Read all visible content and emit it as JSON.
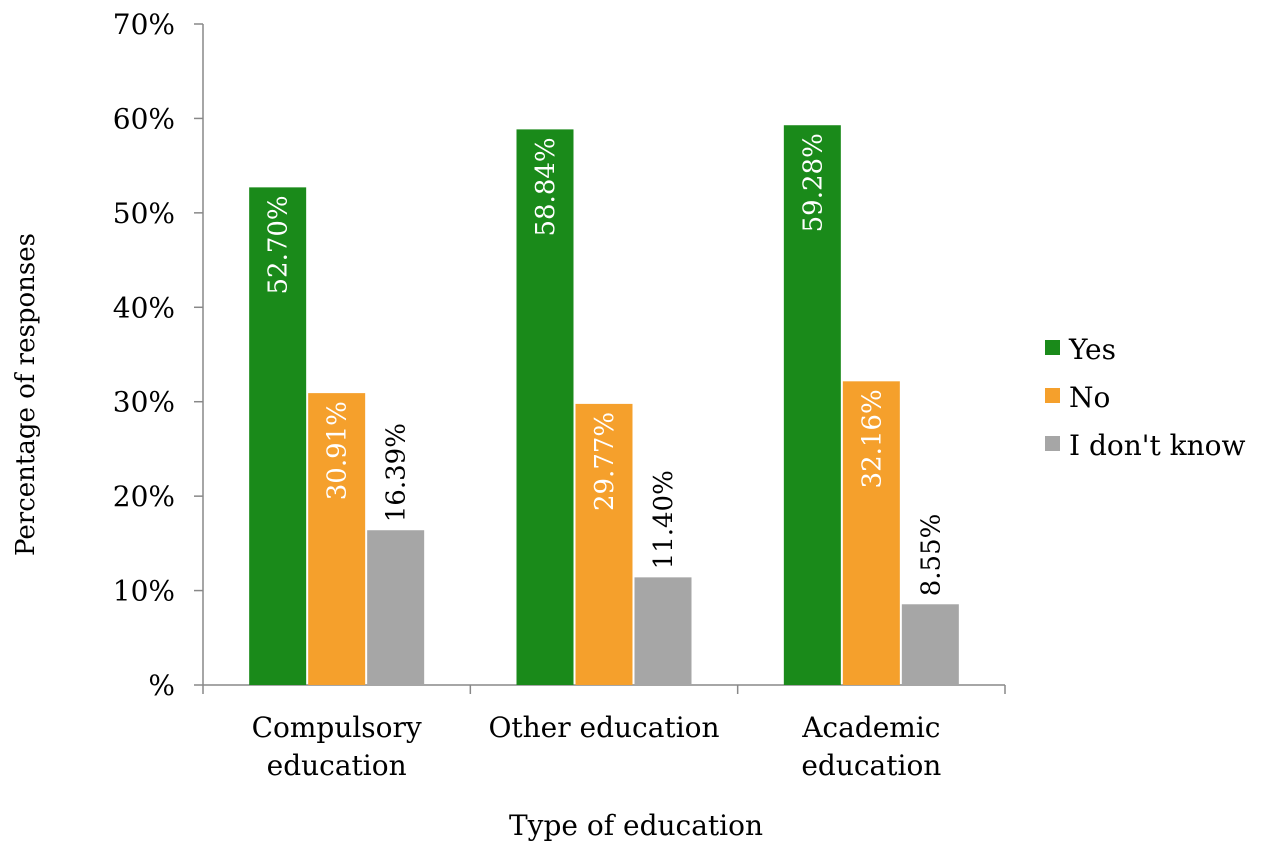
{
  "chart_data": {
    "type": "bar",
    "title": "",
    "xlabel": "Type of education",
    "ylabel": "Percentage of responses",
    "categories": [
      [
        "Compulsory",
        "education"
      ],
      [
        "Other education"
      ],
      [
        "Academic",
        "education"
      ]
    ],
    "series": [
      {
        "name": "Yes",
        "color": "#1a8a1a",
        "label_color": "#ffffff",
        "values": [
          52.7,
          58.84,
          59.28
        ]
      },
      {
        "name": "No",
        "color": "#f5a02c",
        "label_color": "#ffffff",
        "values": [
          30.91,
          29.77,
          32.16
        ]
      },
      {
        "name": "I don't know",
        "color": "#a6a6a6",
        "label_color": "#000000",
        "values": [
          16.39,
          11.4,
          8.55
        ]
      }
    ],
    "data_labels": [
      [
        "52.70%",
        "30.91%",
        "16.39%"
      ],
      [
        "58.84%",
        "29.77%",
        "11.40%"
      ],
      [
        "59.28%",
        "32.16%",
        "8.55%"
      ]
    ],
    "y_ticks": [
      0,
      10,
      20,
      30,
      40,
      50,
      60,
      70
    ],
    "y_tick_labels": [
      "%",
      "10%",
      "20%",
      "30%",
      "40%",
      "50%",
      "60%",
      "70%"
    ],
    "ylim": [
      0,
      70
    ],
    "grid": false,
    "legend_position": "right",
    "axis_color": "#888888"
  }
}
